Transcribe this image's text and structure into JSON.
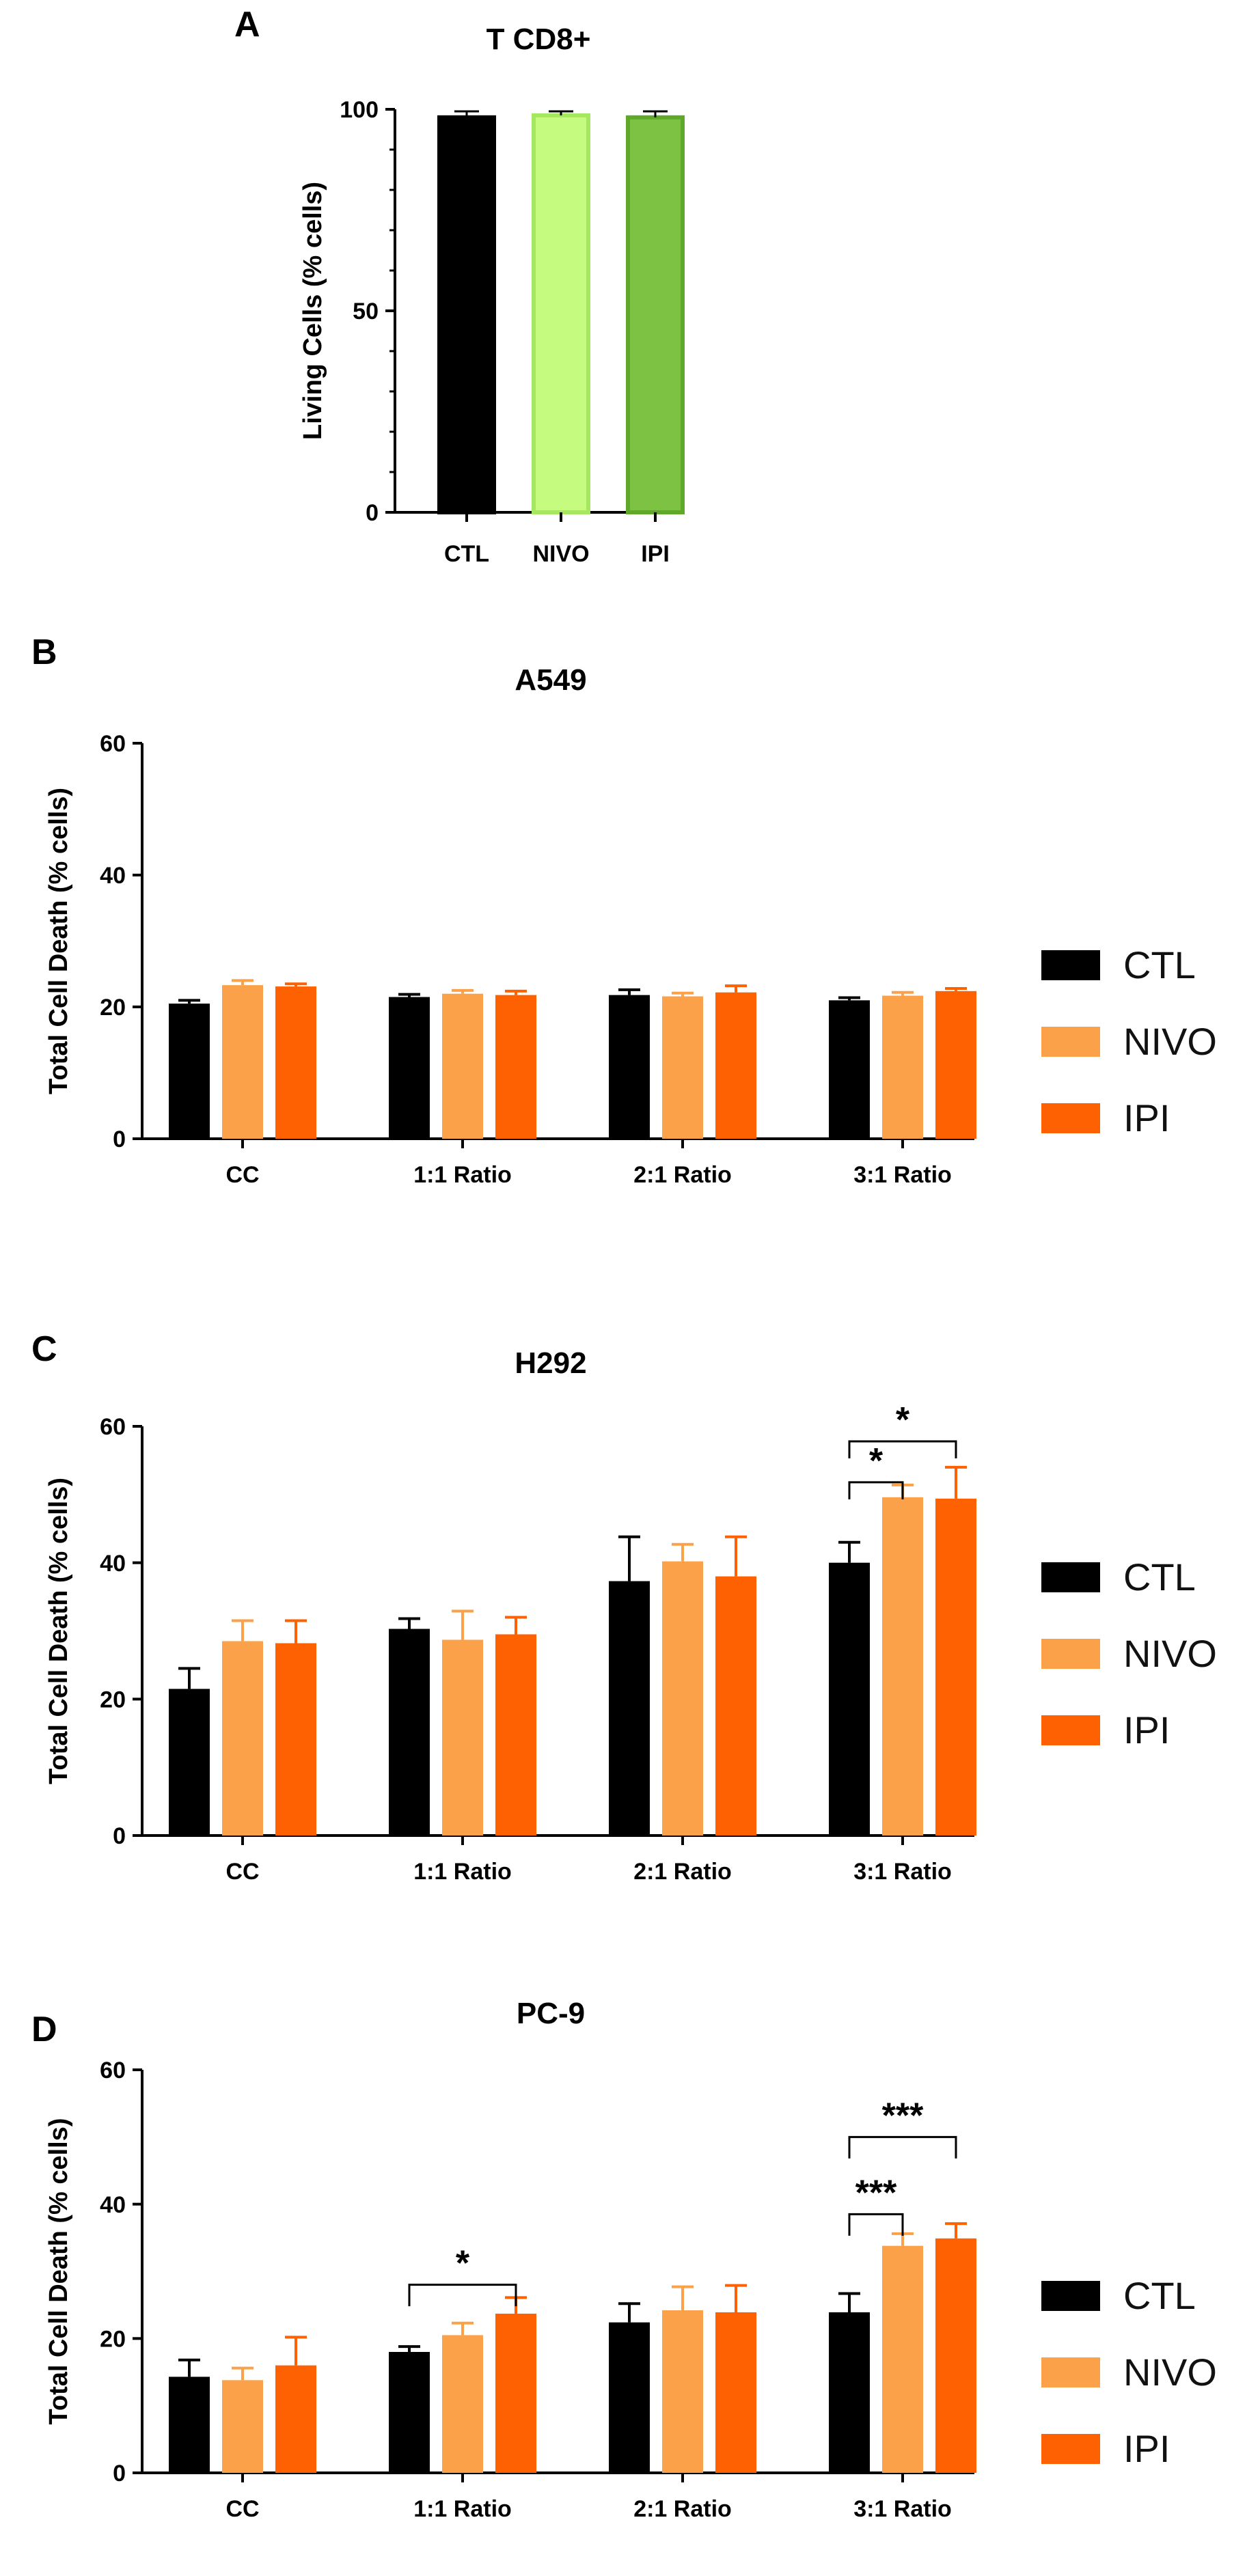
{
  "panels": [
    {
      "letter": "A"
    },
    {
      "letter": "B"
    },
    {
      "letter": "C"
    },
    {
      "letter": "D"
    }
  ],
  "legend": [
    {
      "label": "CTL",
      "color": "#000000"
    },
    {
      "label": "NIVO",
      "color": "#fba14a"
    },
    {
      "label": "IPI",
      "color": "#fe6101"
    }
  ],
  "chart_data": [
    {
      "type": "bar",
      "panel": "A",
      "title": "T CD8+",
      "ylabel": "Living Cells (% cells)",
      "xlabel": "",
      "ylim": [
        0,
        100
      ],
      "yticks": [
        0,
        50,
        100
      ],
      "categories": [
        "CTL",
        "NIVO",
        "IPI"
      ],
      "values": [
        98,
        98.5,
        98
      ],
      "errors": [
        1.5,
        1,
        1.5
      ],
      "fills": [
        "#000000",
        "#c5fc80",
        "#7dc242"
      ],
      "strokes": [
        "#000000",
        "#a5e860",
        "#5fa82a"
      ]
    },
    {
      "type": "bar",
      "panel": "B",
      "title": "A549",
      "ylabel": "Total Cell Death (% cells)",
      "xlabel": "",
      "ylim": [
        0,
        60
      ],
      "yticks": [
        0,
        20,
        40,
        60
      ],
      "categories": [
        "CC",
        "1:1 Ratio",
        "2:1 Ratio",
        "3:1 Ratio"
      ],
      "series": [
        {
          "name": "CTL",
          "values": [
            20.5,
            21.5,
            21.8,
            21.0
          ],
          "errors": [
            0.5,
            0.4,
            0.8,
            0.4
          ]
        },
        {
          "name": "NIVO",
          "values": [
            23.3,
            22.0,
            21.6,
            21.7
          ],
          "errors": [
            0.7,
            0.5,
            0.5,
            0.5
          ]
        },
        {
          "name": "IPI",
          "values": [
            23.1,
            21.8,
            22.2,
            22.4
          ],
          "errors": [
            0.4,
            0.6,
            1.0,
            0.4
          ]
        }
      ],
      "significance": []
    },
    {
      "type": "bar",
      "panel": "C",
      "title": "H292",
      "ylabel": "Total Cell Death (% cells)",
      "xlabel": "",
      "ylim": [
        0,
        60
      ],
      "yticks": [
        0,
        20,
        40,
        60
      ],
      "categories": [
        "CC",
        "1:1 Ratio",
        "2:1 Ratio",
        "3:1 Ratio"
      ],
      "series": [
        {
          "name": "CTL",
          "values": [
            21.5,
            30.3,
            37.3,
            40.0
          ],
          "errors": [
            3.0,
            1.5,
            6.5,
            3.0
          ]
        },
        {
          "name": "NIVO",
          "values": [
            28.5,
            28.7,
            40.2,
            49.6
          ],
          "errors": [
            3.0,
            4.2,
            2.5,
            1.8
          ]
        },
        {
          "name": "IPI",
          "values": [
            28.2,
            29.5,
            38.0,
            49.4
          ],
          "errors": [
            3.3,
            2.5,
            5.8,
            4.6
          ]
        }
      ],
      "significance": [
        {
          "category": 3,
          "from": 0,
          "to": 1,
          "label": "*",
          "level": 51.8,
          "tick": 2.5
        },
        {
          "category": 3,
          "from": 0,
          "to": 2,
          "label": "*",
          "level": 57.8,
          "tick": 2.5
        }
      ]
    },
    {
      "type": "bar",
      "panel": "D",
      "title": "PC-9",
      "ylabel": "Total Cell Death (% cells)",
      "xlabel": "",
      "ylim": [
        0,
        60
      ],
      "yticks": [
        0,
        20,
        40,
        60
      ],
      "categories": [
        "CC",
        "1:1 Ratio",
        "2:1 Ratio",
        "3:1 Ratio"
      ],
      "series": [
        {
          "name": "CTL",
          "values": [
            14.3,
            18.0,
            22.4,
            23.9
          ],
          "errors": [
            2.5,
            0.8,
            2.8,
            2.8
          ]
        },
        {
          "name": "NIVO",
          "values": [
            13.8,
            20.5,
            24.2,
            33.8
          ],
          "errors": [
            1.8,
            1.8,
            3.5,
            1.8
          ]
        },
        {
          "name": "IPI",
          "values": [
            16.0,
            23.7,
            23.9,
            34.9
          ],
          "errors": [
            4.2,
            2.4,
            4.0,
            2.2
          ]
        }
      ],
      "significance": [
        {
          "category": 1,
          "from": 0,
          "to": 2,
          "label": "*",
          "level": 28.0,
          "tick": 3.2
        },
        {
          "category": 3,
          "from": 0,
          "to": 1,
          "label": "***",
          "level": 38.5,
          "tick": 3.2
        },
        {
          "category": 3,
          "from": 0,
          "to": 2,
          "label": "***",
          "level": 50.0,
          "tick": 3.2
        }
      ]
    }
  ]
}
